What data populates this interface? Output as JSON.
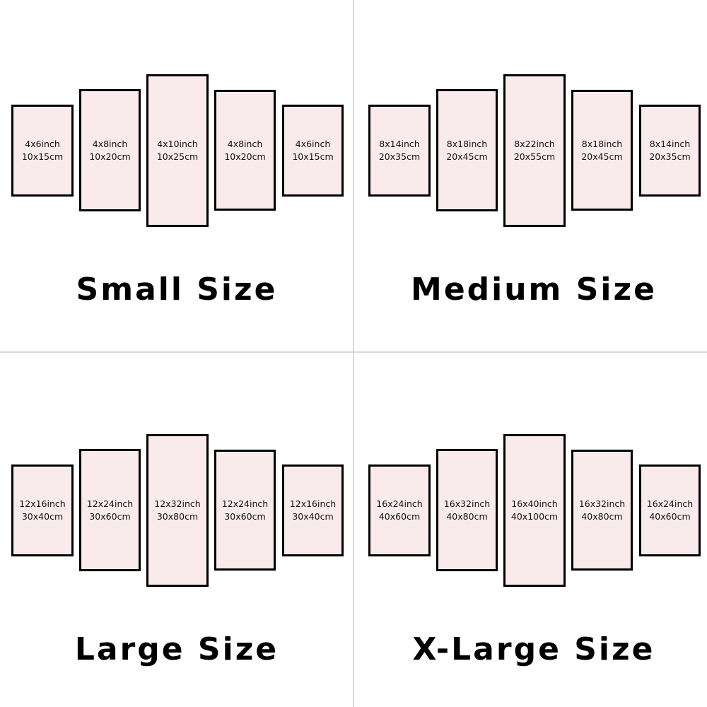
{
  "colors": {
    "panel_fill": "#f9ebeb",
    "panel_border": "#000000",
    "divider": "#d9d9d9"
  },
  "groups": [
    {
      "title": "Small Size",
      "panels": [
        {
          "inch": "4x6inch",
          "cm": "10x15cm"
        },
        {
          "inch": "4x8inch",
          "cm": "10x20cm"
        },
        {
          "inch": "4x10inch",
          "cm": "10x25cm"
        },
        {
          "inch": "4x8inch",
          "cm": "10x20cm"
        },
        {
          "inch": "4x6inch",
          "cm": "10x15cm"
        }
      ]
    },
    {
      "title": "Medium Size",
      "panels": [
        {
          "inch": "8x14inch",
          "cm": "20x35cm"
        },
        {
          "inch": "8x18inch",
          "cm": "20x45cm"
        },
        {
          "inch": "8x22inch",
          "cm": "20x55cm"
        },
        {
          "inch": "8x18inch",
          "cm": "20x45cm"
        },
        {
          "inch": "8x14inch",
          "cm": "20x35cm"
        }
      ]
    },
    {
      "title": "Large Size",
      "panels": [
        {
          "inch": "12x16inch",
          "cm": "30x40cm"
        },
        {
          "inch": "12x24inch",
          "cm": "30x60cm"
        },
        {
          "inch": "12x32inch",
          "cm": "30x80cm"
        },
        {
          "inch": "12x24inch",
          "cm": "30x60cm"
        },
        {
          "inch": "12x16inch",
          "cm": "30x40cm"
        }
      ]
    },
    {
      "title": "X-Large Size",
      "panels": [
        {
          "inch": "16x24inch",
          "cm": "40x60cm"
        },
        {
          "inch": "16x32inch",
          "cm": "40x80cm"
        },
        {
          "inch": "16x40inch",
          "cm": "40x100cm"
        },
        {
          "inch": "16x32inch",
          "cm": "40x80cm"
        },
        {
          "inch": "16x24inch",
          "cm": "40x60cm"
        }
      ]
    }
  ]
}
